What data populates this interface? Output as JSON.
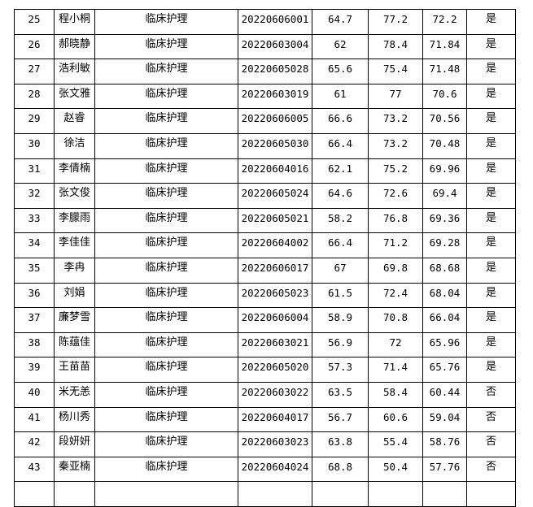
{
  "rows": [
    {
      "no": "25",
      "name": "程小桐",
      "major": "临床护理",
      "id": "20220606001",
      "s1": "64.7",
      "s2": "77.2",
      "total": "72.2",
      "pass": "是"
    },
    {
      "no": "26",
      "name": "郝晓静",
      "major": "临床护理",
      "id": "20220603004",
      "s1": "62",
      "s2": "78.4",
      "total": "71.84",
      "pass": "是"
    },
    {
      "no": "27",
      "name": "浩利敏",
      "major": "临床护理",
      "id": "20220605028",
      "s1": "65.6",
      "s2": "75.4",
      "total": "71.48",
      "pass": "是"
    },
    {
      "no": "28",
      "name": "张文雅",
      "major": "临床护理",
      "id": "20220603019",
      "s1": "61",
      "s2": "77",
      "total": "70.6",
      "pass": "是"
    },
    {
      "no": "29",
      "name": "赵睿",
      "major": "临床护理",
      "id": "20220606005",
      "s1": "66.6",
      "s2": "73.2",
      "total": "70.56",
      "pass": "是"
    },
    {
      "no": "30",
      "name": "徐洁",
      "major": "临床护理",
      "id": "20220605030",
      "s1": "66.4",
      "s2": "73.2",
      "total": "70.48",
      "pass": "是"
    },
    {
      "no": "31",
      "name": "李倩楠",
      "major": "临床护理",
      "id": "20220604016",
      "s1": "62.1",
      "s2": "75.2",
      "total": "69.96",
      "pass": "是"
    },
    {
      "no": "32",
      "name": "张文俊",
      "major": "临床护理",
      "id": "20220605024",
      "s1": "64.6",
      "s2": "72.6",
      "total": "69.4",
      "pass": "是"
    },
    {
      "no": "33",
      "name": "李朦雨",
      "major": "临床护理",
      "id": "20220605021",
      "s1": "58.2",
      "s2": "76.8",
      "total": "69.36",
      "pass": "是"
    },
    {
      "no": "34",
      "name": "李佳佳",
      "major": "临床护理",
      "id": "20220604002",
      "s1": "66.4",
      "s2": "71.2",
      "total": "69.28",
      "pass": "是"
    },
    {
      "no": "35",
      "name": "李冉",
      "major": "临床护理",
      "id": "20220606017",
      "s1": "67",
      "s2": "69.8",
      "total": "68.68",
      "pass": "是"
    },
    {
      "no": "36",
      "name": "刘娟",
      "major": "临床护理",
      "id": "20220605023",
      "s1": "61.5",
      "s2": "72.4",
      "total": "68.04",
      "pass": "是"
    },
    {
      "no": "37",
      "name": "廉梦雪",
      "major": "临床护理",
      "id": "20220606004",
      "s1": "58.9",
      "s2": "70.8",
      "total": "66.04",
      "pass": "是"
    },
    {
      "no": "38",
      "name": "陈蕴佳",
      "major": "临床护理",
      "id": "20220603021",
      "s1": "56.9",
      "s2": "72",
      "total": "65.96",
      "pass": "是"
    },
    {
      "no": "39",
      "name": "王苗苗",
      "major": "临床护理",
      "id": "20220605020",
      "s1": "57.3",
      "s2": "71.4",
      "total": "65.76",
      "pass": "是"
    },
    {
      "no": "40",
      "name": "米无恙",
      "major": "临床护理",
      "id": "20220603022",
      "s1": "63.5",
      "s2": "58.4",
      "total": "60.44",
      "pass": "否"
    },
    {
      "no": "41",
      "name": "杨川秀",
      "major": "临床护理",
      "id": "20220604017",
      "s1": "56.7",
      "s2": "60.6",
      "total": "59.04",
      "pass": "否"
    },
    {
      "no": "42",
      "name": "段妍妍",
      "major": "临床护理",
      "id": "20220603023",
      "s1": "63.8",
      "s2": "55.4",
      "total": "58.76",
      "pass": "否"
    },
    {
      "no": "43",
      "name": "秦亚楠",
      "major": "临床护理",
      "id": "20220604024",
      "s1": "68.8",
      "s2": "50.4",
      "total": "57.76",
      "pass": "否"
    }
  ]
}
